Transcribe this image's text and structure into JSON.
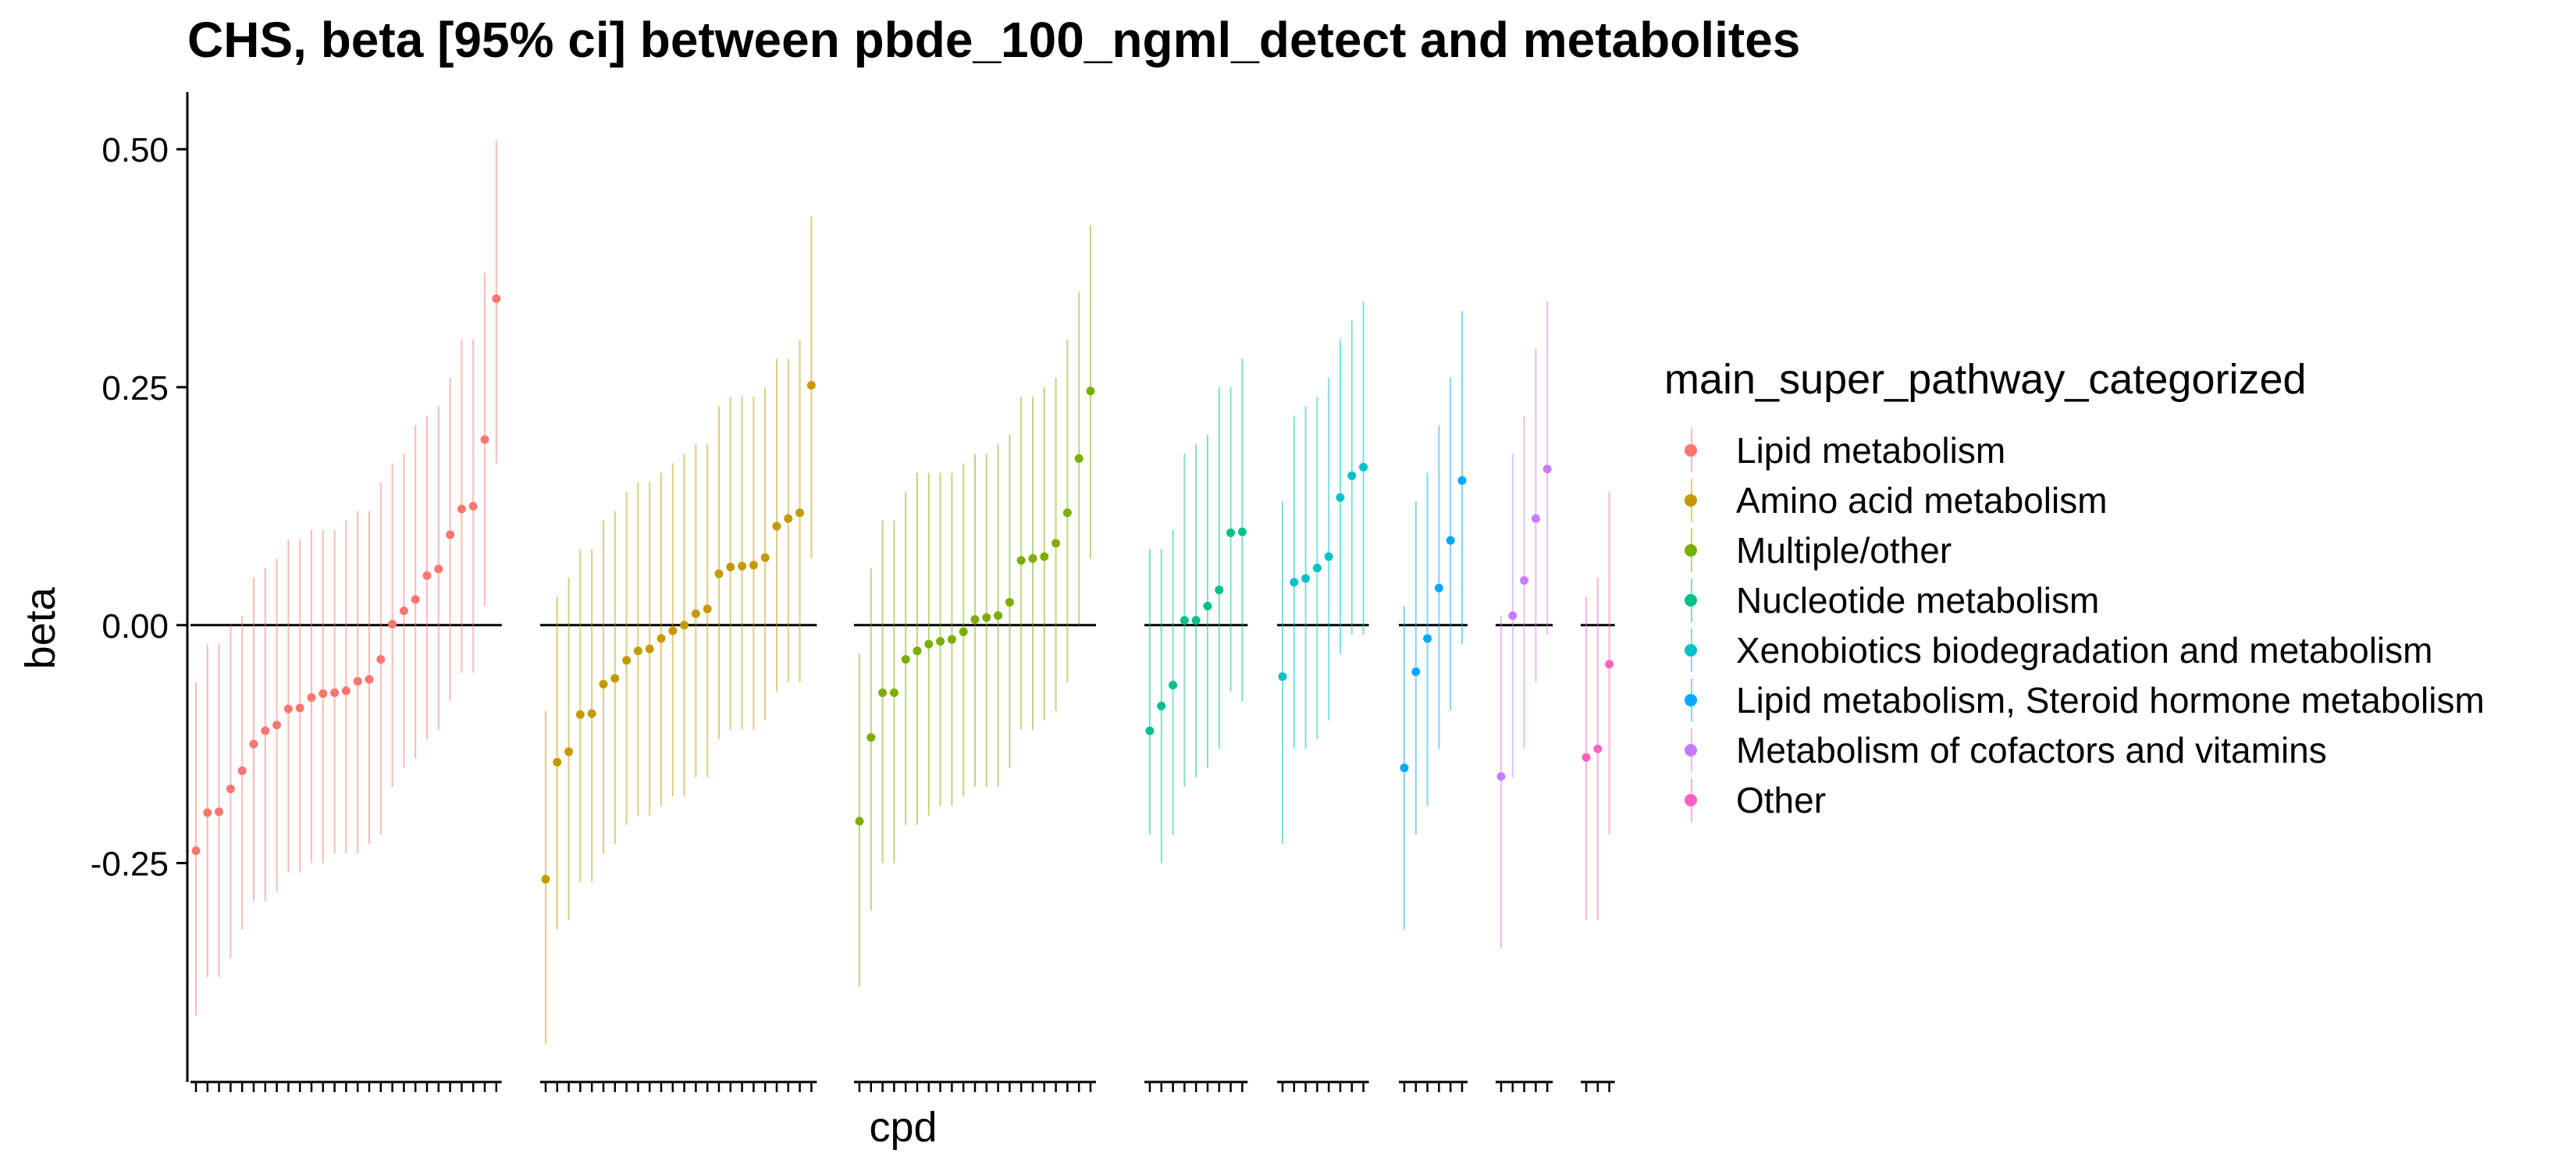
{
  "chart_data": {
    "type": "scatter",
    "subtype": "point-range (estimate with 95% CI), faceted by category",
    "title": "CHS, beta [95% ci] between pbde_100_ngml_detect and metabolites",
    "xlabel": "cpd",
    "ylabel": "beta",
    "ylim": [
      -0.48,
      0.56
    ],
    "yticks": [
      -0.25,
      0.0,
      0.25,
      0.5
    ],
    "ytick_labels": [
      "-0.25",
      "0.00",
      "0.25",
      "0.50"
    ],
    "reference_line": 0,
    "grid": false,
    "legend": {
      "title": "main_super_pathway_categorized",
      "position": "right"
    },
    "series": [
      {
        "name": "Lipid metabolism",
        "color": "#F8766D",
        "beta": [
          -0.237,
          -0.197,
          -0.196,
          -0.172,
          -0.153,
          -0.125,
          -0.111,
          -0.105,
          -0.088,
          -0.087,
          -0.076,
          -0.072,
          -0.071,
          -0.069,
          -0.059,
          -0.057,
          -0.036,
          0.001,
          0.015,
          0.027,
          0.052,
          0.059,
          0.095,
          0.122,
          0.125,
          0.195,
          0.343
        ],
        "lower": [
          -0.41,
          -0.37,
          -0.37,
          -0.35,
          -0.32,
          -0.29,
          -0.29,
          -0.28,
          -0.26,
          -0.26,
          -0.25,
          -0.25,
          -0.24,
          -0.24,
          -0.24,
          -0.23,
          -0.22,
          -0.17,
          -0.15,
          -0.14,
          -0.12,
          -0.11,
          -0.08,
          -0.05,
          -0.05,
          0.02,
          0.17
        ],
        "upper": [
          -0.06,
          -0.02,
          -0.02,
          0.0,
          0.01,
          0.05,
          0.06,
          0.07,
          0.09,
          0.09,
          0.1,
          0.1,
          0.1,
          0.11,
          0.12,
          0.12,
          0.15,
          0.17,
          0.18,
          0.21,
          0.22,
          0.23,
          0.26,
          0.3,
          0.3,
          0.37,
          0.51
        ]
      },
      {
        "name": "Amino acid metabolism",
        "color": "#C49A00",
        "beta": [
          -0.267,
          -0.144,
          -0.133,
          -0.094,
          -0.093,
          -0.062,
          -0.056,
          -0.037,
          -0.027,
          -0.025,
          -0.014,
          -0.006,
          0.0,
          0.012,
          0.017,
          0.054,
          0.061,
          0.062,
          0.063,
          0.071,
          0.104,
          0.112,
          0.118,
          0.252
        ],
        "lower": [
          -0.44,
          -0.32,
          -0.31,
          -0.27,
          -0.27,
          -0.24,
          -0.23,
          -0.21,
          -0.2,
          -0.2,
          -0.19,
          -0.18,
          -0.18,
          -0.16,
          -0.16,
          -0.12,
          -0.11,
          -0.11,
          -0.11,
          -0.1,
          -0.07,
          -0.06,
          -0.06,
          0.07
        ],
        "upper": [
          -0.09,
          0.03,
          0.05,
          0.08,
          0.08,
          0.11,
          0.12,
          0.14,
          0.15,
          0.15,
          0.16,
          0.17,
          0.18,
          0.19,
          0.19,
          0.23,
          0.24,
          0.24,
          0.24,
          0.25,
          0.28,
          0.28,
          0.3,
          0.43
        ]
      },
      {
        "name": "Multiple/other",
        "color": "#7CAE00",
        "beta": [
          -0.206,
          -0.118,
          -0.071,
          -0.071,
          -0.036,
          -0.027,
          -0.02,
          -0.017,
          -0.015,
          -0.007,
          0.006,
          0.008,
          0.01,
          0.024,
          0.068,
          0.07,
          0.072,
          0.086,
          0.118,
          0.175,
          0.246
        ],
        "lower": [
          -0.38,
          -0.3,
          -0.25,
          -0.25,
          -0.21,
          -0.21,
          -0.2,
          -0.19,
          -0.19,
          -0.18,
          -0.17,
          -0.17,
          -0.17,
          -0.15,
          -0.11,
          -0.11,
          -0.1,
          -0.09,
          -0.06,
          0.0,
          0.07
        ],
        "upper": [
          -0.03,
          0.06,
          0.11,
          0.11,
          0.14,
          0.16,
          0.16,
          0.16,
          0.16,
          0.17,
          0.18,
          0.18,
          0.19,
          0.2,
          0.24,
          0.24,
          0.25,
          0.26,
          0.3,
          0.35,
          0.42
        ]
      },
      {
        "name": "Nucleotide metabolism",
        "color": "#00C08B",
        "beta": [
          -0.111,
          -0.085,
          -0.063,
          0.005,
          0.005,
          0.02,
          0.037,
          0.097,
          0.098
        ],
        "lower": [
          -0.22,
          -0.25,
          -0.22,
          -0.17,
          -0.16,
          -0.15,
          -0.13,
          -0.07,
          -0.08
        ],
        "upper": [
          0.08,
          0.08,
          0.1,
          0.18,
          0.19,
          0.2,
          0.25,
          0.25,
          0.28
        ]
      },
      {
        "name": "Xenobiotics biodegradation and metabolism",
        "color": "#00C1C9",
        "beta": [
          -0.054,
          0.045,
          0.049,
          0.06,
          0.072,
          0.134,
          0.157,
          0.166
        ],
        "lower": [
          -0.23,
          -0.13,
          -0.13,
          -0.12,
          -0.1,
          -0.03,
          -0.01,
          -0.01
        ],
        "upper": [
          0.13,
          0.22,
          0.23,
          0.24,
          0.26,
          0.3,
          0.32,
          0.34
        ]
      },
      {
        "name": "Lipid metabolism, Steroid hormone metabolism",
        "color": "#00A9FF",
        "beta": [
          -0.15,
          -0.049,
          -0.014,
          0.039,
          0.089,
          0.152
        ],
        "lower": [
          -0.32,
          -0.22,
          -0.19,
          -0.13,
          -0.09,
          -0.02
        ],
        "upper": [
          0.02,
          0.13,
          0.16,
          0.21,
          0.26,
          0.33
        ]
      },
      {
        "name": "Metabolism of cofactors and vitamins",
        "color": "#C77CFF",
        "beta": [
          -0.159,
          0.01,
          0.047,
          0.112,
          0.164
        ],
        "lower": [
          -0.34,
          -0.16,
          -0.13,
          -0.06,
          -0.01
        ],
        "upper": [
          0.01,
          0.18,
          0.22,
          0.29,
          0.34
        ]
      },
      {
        "name": "Other",
        "color": "#FF61C3",
        "beta": [
          -0.139,
          -0.13,
          -0.041
        ],
        "lower": [
          -0.31,
          -0.31,
          -0.22
        ],
        "upper": [
          0.03,
          0.05,
          0.14
        ]
      }
    ]
  }
}
